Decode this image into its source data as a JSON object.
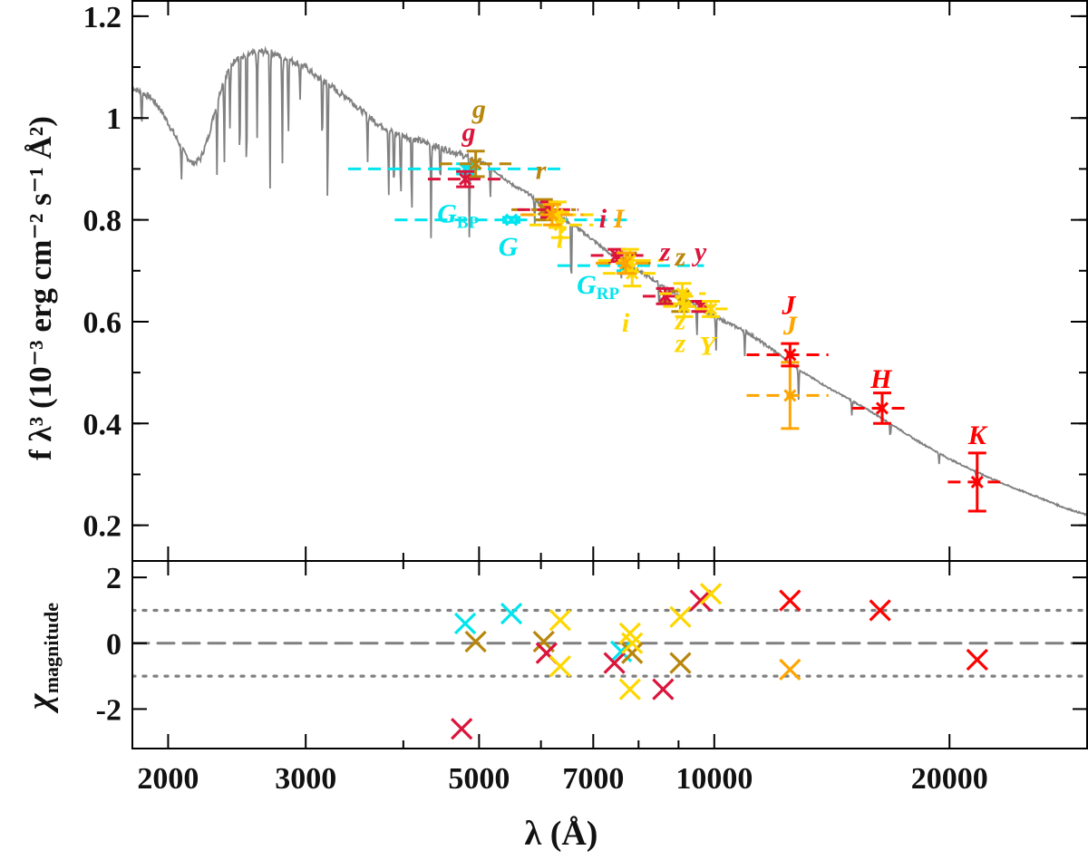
{
  "chart_data": [
    {
      "id": "sed",
      "type": "line+scatter",
      "title": "",
      "xlabel": "λ (Å)",
      "ylabel": "f λ³ (10⁻³ erg cm⁻² s⁻¹ Å²)",
      "xscale": "log",
      "xlim": [
        1800,
        30000
      ],
      "ylim": [
        0.13,
        1.23
      ],
      "xticks": [
        2000,
        3000,
        5000,
        7000,
        10000,
        20000
      ],
      "yticks": [
        0.2,
        0.4,
        0.6,
        0.8,
        1,
        1.2
      ],
      "yticklabels": [
        "0.2",
        "0.4",
        "0.6",
        "0.8",
        "1",
        "1.2"
      ],
      "model_spectrum": {
        "color": "#808080",
        "x": [
          1800,
          1850,
          1900,
          1950,
          2000,
          2050,
          2100,
          2150,
          2200,
          2250,
          2300,
          2350,
          2400,
          2450,
          2500,
          2600,
          2700,
          2800,
          2900,
          3000,
          3100,
          3200,
          3300,
          3400,
          3500,
          3700,
          3900,
          4100,
          4300,
          4500,
          4700,
          4900,
          5100,
          5300,
          5500,
          5800,
          6000,
          6300,
          6600,
          7000,
          7400,
          7800,
          8200,
          8600,
          9000,
          9500,
          10000,
          11000,
          12000,
          13000,
          14000,
          15000,
          16000,
          17000,
          18000,
          20000,
          22000,
          24000,
          26000,
          28000,
          30000
        ],
        "y": [
          1.06,
          1.05,
          1.04,
          1.02,
          0.99,
          0.96,
          0.93,
          0.91,
          0.92,
          0.96,
          1.02,
          1.07,
          1.1,
          1.12,
          1.12,
          1.13,
          1.13,
          1.12,
          1.11,
          1.1,
          1.08,
          1.07,
          1.05,
          1.04,
          1.02,
          0.99,
          0.97,
          0.96,
          0.95,
          0.94,
          0.93,
          0.92,
          0.91,
          0.89,
          0.87,
          0.85,
          0.83,
          0.81,
          0.79,
          0.76,
          0.73,
          0.71,
          0.69,
          0.67,
          0.65,
          0.63,
          0.61,
          0.58,
          0.54,
          0.5,
          0.47,
          0.445,
          0.42,
          0.395,
          0.37,
          0.33,
          0.3,
          0.275,
          0.255,
          0.235,
          0.22
        ]
      },
      "absorption_lines": [
        {
          "x": 1850,
          "depth": 0.07
        },
        {
          "x": 2080,
          "depth": 0.06
        },
        {
          "x": 2310,
          "depth": 0.14
        },
        {
          "x": 2360,
          "depth": 0.17
        },
        {
          "x": 2400,
          "depth": 0.13
        },
        {
          "x": 2470,
          "depth": 0.24
        },
        {
          "x": 2520,
          "depth": 0.27
        },
        {
          "x": 2600,
          "depth": 0.17
        },
        {
          "x": 2700,
          "depth": 0.29
        },
        {
          "x": 2800,
          "depth": 0.22
        },
        {
          "x": 2850,
          "depth": 0.16
        },
        {
          "x": 2950,
          "depth": 0.07
        },
        {
          "x": 3150,
          "depth": 0.14
        },
        {
          "x": 3200,
          "depth": 0.26
        },
        {
          "x": 3600,
          "depth": 0.09
        },
        {
          "x": 3830,
          "depth": 0.14
        },
        {
          "x": 3890,
          "depth": 0.13
        },
        {
          "x": 3970,
          "depth": 0.14
        },
        {
          "x": 4100,
          "depth": 0.16
        },
        {
          "x": 4340,
          "depth": 0.18
        },
        {
          "x": 4460,
          "depth": 0.08
        },
        {
          "x": 4860,
          "depth": 0.17
        },
        {
          "x": 5170,
          "depth": 0.06
        },
        {
          "x": 5890,
          "depth": 0.05
        },
        {
          "x": 6560,
          "depth": 0.14
        },
        {
          "x": 7600,
          "depth": 0.04
        },
        {
          "x": 8500,
          "depth": 0.05
        },
        {
          "x": 8660,
          "depth": 0.04
        },
        {
          "x": 9500,
          "depth": 0.06
        },
        {
          "x": 10050,
          "depth": 0.07
        },
        {
          "x": 10940,
          "depth": 0.05
        },
        {
          "x": 12820,
          "depth": 0.06
        },
        {
          "x": 15000,
          "depth": 0.03
        },
        {
          "x": 16800,
          "depth": 0.03
        },
        {
          "x": 19400,
          "depth": 0.02
        },
        {
          "x": 21660,
          "depth": 0.03
        }
      ],
      "photometry": [
        {
          "color": "#00e5ee",
          "x": 4800,
          "x_lo": 3400,
          "x_hi": 6400,
          "y": 0.9,
          "yerr": 0.01
        },
        {
          "color": "#00e5ee",
          "x": 5500,
          "x_lo": 3900,
          "x_hi": 7900,
          "y": 0.8,
          "yerr": 0.005
        },
        {
          "color": "#00e5ee",
          "x": 7700,
          "x_lo": 6300,
          "x_hi": 9700,
          "y": 0.71,
          "yerr": 0.01
        },
        {
          "color": "#b8860b",
          "x": 4950,
          "x_lo": 4450,
          "x_hi": 5500,
          "y": 0.91,
          "yerr": 0.025
        },
        {
          "color": "#b8860b",
          "x": 6050,
          "x_lo": 5500,
          "x_hi": 6650,
          "y": 0.82,
          "yerr": 0.02
        },
        {
          "color": "#b8860b",
          "x": 7750,
          "x_lo": 7100,
          "x_hi": 8400,
          "y": 0.715,
          "yerr": 0.02
        },
        {
          "color": "#b8860b",
          "x": 9050,
          "x_lo": 8500,
          "x_hi": 9600,
          "y": 0.64,
          "yerr": 0.02
        },
        {
          "color": "#dc143c",
          "x": 4800,
          "x_lo": 4300,
          "x_hi": 5400,
          "y": 0.88,
          "yerr": 0.015
        },
        {
          "color": "#dc143c",
          "x": 6150,
          "x_lo": 5600,
          "x_hi": 6700,
          "y": 0.82,
          "yerr": 0.015
        },
        {
          "color": "#dc143c",
          "x": 7500,
          "x_lo": 6950,
          "x_hi": 8200,
          "y": 0.73,
          "yerr": 0.012
        },
        {
          "color": "#dc143c",
          "x": 8650,
          "x_lo": 8100,
          "x_hi": 9200,
          "y": 0.65,
          "yerr": 0.015
        },
        {
          "color": "#dc143c",
          "x": 9600,
          "x_lo": 9100,
          "x_hi": 10000,
          "y": 0.63,
          "yerr": 0.01
        },
        {
          "color": "#ffd700",
          "x": 6300,
          "x_lo": 5700,
          "x_hi": 7000,
          "y": 0.81,
          "yerr": 0.025
        },
        {
          "color": "#ffd700",
          "x": 6350,
          "x_lo": 5800,
          "x_hi": 7000,
          "y": 0.79,
          "yerr": 0.025
        },
        {
          "color": "#ffd700",
          "x": 7800,
          "x_lo": 7100,
          "x_hi": 8600,
          "y": 0.72,
          "yerr": 0.022
        },
        {
          "color": "#ffd700",
          "x": 7850,
          "x_lo": 7200,
          "x_hi": 8550,
          "y": 0.695,
          "yerr": 0.025
        },
        {
          "color": "#ffd700",
          "x": 9100,
          "x_lo": 8500,
          "x_hi": 9750,
          "y": 0.655,
          "yerr": 0.02
        },
        {
          "color": "#ffd700",
          "x": 9150,
          "x_lo": 8600,
          "x_hi": 9700,
          "y": 0.63,
          "yerr": 0.02
        },
        {
          "color": "#ffd700",
          "x": 9900,
          "x_lo": 9450,
          "x_hi": 10400,
          "y": 0.625,
          "yerr": 0.015
        },
        {
          "color": "#ffa500",
          "x": 6200,
          "x_lo": 5650,
          "x_hi": 6800,
          "y": 0.81,
          "yerr": 0.02
        },
        {
          "color": "#ffa500",
          "x": 7700,
          "x_lo": 7050,
          "x_hi": 8400,
          "y": 0.715,
          "yerr": 0.02
        },
        {
          "color": "#ffa500",
          "x": 12500,
          "x_lo": 11000,
          "x_hi": 14000,
          "y": 0.455,
          "yerr": 0.065
        },
        {
          "color": "#ff0000",
          "x": 12500,
          "x_lo": 11000,
          "x_hi": 14000,
          "y": 0.535,
          "yerr": 0.022
        },
        {
          "color": "#ff0000",
          "x": 16400,
          "x_lo": 15000,
          "x_hi": 17800,
          "y": 0.43,
          "yerr": 0.03
        },
        {
          "color": "#ff0000",
          "x": 21700,
          "x_lo": 19900,
          "x_hi": 23400,
          "y": 0.285,
          "yerr": 0.057
        }
      ],
      "band_labels": [
        {
          "text": "g",
          "sub": "",
          "color": "#b8860b",
          "x": 5000,
          "y": 1.0
        },
        {
          "text": "g",
          "sub": "",
          "color": "#dc143c",
          "x": 4850,
          "y": 0.955
        },
        {
          "text": "r",
          "sub": "",
          "color": "#b8860b",
          "x": 6000,
          "y": 0.88
        },
        {
          "text": "G",
          "sub": "BP",
          "color": "#00e5ee",
          "x": 4700,
          "y": 0.795
        },
        {
          "text": "G",
          "sub": "",
          "color": "#00e5ee",
          "x": 5450,
          "y": 0.73
        },
        {
          "text": "i",
          "sub": "",
          "color": "#dc143c",
          "x": 7200,
          "y": 0.785
        },
        {
          "text": "I",
          "sub": "",
          "color": "#ffa500",
          "x": 7550,
          "y": 0.785
        },
        {
          "text": "i",
          "sub": "",
          "color": "#ffd700",
          "x": 6350,
          "y": 0.745
        },
        {
          "text": "z",
          "sub": "",
          "color": "#dc143c",
          "x": 8650,
          "y": 0.72
        },
        {
          "text": "z",
          "sub": "",
          "color": "#b8860b",
          "x": 9050,
          "y": 0.71
        },
        {
          "text": "y",
          "sub": "",
          "color": "#dc143c",
          "x": 9600,
          "y": 0.72
        },
        {
          "text": "G",
          "sub": "RP",
          "color": "#00e5ee",
          "x": 7100,
          "y": 0.655
        },
        {
          "text": "i",
          "sub": "",
          "color": "#ffd700",
          "x": 7700,
          "y": 0.58
        },
        {
          "text": "z",
          "sub": "",
          "color": "#ffd700",
          "x": 9050,
          "y": 0.585
        },
        {
          "text": "z",
          "sub": "",
          "color": "#ffd700",
          "x": 9050,
          "y": 0.54
        },
        {
          "text": "Y",
          "sub": "",
          "color": "#ffd700",
          "x": 9800,
          "y": 0.535
        },
        {
          "text": "J",
          "sub": "",
          "color": "#ff0000",
          "x": 12450,
          "y": 0.615
        },
        {
          "text": "J",
          "sub": "",
          "color": "#ffa500",
          "x": 12500,
          "y": 0.575
        },
        {
          "text": "H",
          "sub": "",
          "color": "#ff0000",
          "x": 16350,
          "y": 0.47
        },
        {
          "text": "K",
          "sub": "",
          "color": "#ff0000",
          "x": 21700,
          "y": 0.36
        }
      ]
    },
    {
      "id": "residuals",
      "type": "scatter",
      "xlabel": "λ (Å)",
      "ylabel": "χ",
      "ylabel_sub": "magnitude",
      "xscale": "log",
      "xlim": [
        1800,
        30000
      ],
      "ylim": [
        -3.2,
        2.5
      ],
      "xticks": [
        2000,
        3000,
        5000,
        7000,
        10000,
        20000
      ],
      "xticklabels": [
        "2000",
        "3000",
        "5000",
        "7000",
        "10000",
        "20000"
      ],
      "yticks": [
        -2,
        0,
        2
      ],
      "yticklabels": [
        "-2",
        "0",
        "2"
      ],
      "reference_lines": [
        {
          "y": 0,
          "style": "dashed",
          "color": "#808080"
        },
        {
          "y": 1,
          "style": "dotted",
          "color": "#808080"
        },
        {
          "y": -1,
          "style": "dotted",
          "color": "#808080"
        }
      ],
      "points": [
        {
          "x": 4800,
          "y": 0.6,
          "color": "#00e5ee"
        },
        {
          "x": 5500,
          "y": 0.9,
          "color": "#00e5ee"
        },
        {
          "x": 7600,
          "y": -0.25,
          "color": "#00e5ee"
        },
        {
          "x": 4950,
          "y": 0.05,
          "color": "#b8860b"
        },
        {
          "x": 6050,
          "y": 0.05,
          "color": "#b8860b"
        },
        {
          "x": 7850,
          "y": -0.3,
          "color": "#b8860b"
        },
        {
          "x": 9050,
          "y": -0.6,
          "color": "#b8860b"
        },
        {
          "x": 4750,
          "y": -2.6,
          "color": "#dc143c"
        },
        {
          "x": 6100,
          "y": -0.3,
          "color": "#dc143c"
        },
        {
          "x": 7450,
          "y": -0.6,
          "color": "#dc143c"
        },
        {
          "x": 8600,
          "y": -1.4,
          "color": "#dc143c"
        },
        {
          "x": 9600,
          "y": 1.3,
          "color": "#dc143c"
        },
        {
          "x": 6350,
          "y": 0.7,
          "color": "#ffd700"
        },
        {
          "x": 6350,
          "y": -0.7,
          "color": "#ffd700"
        },
        {
          "x": 7800,
          "y": 0.3,
          "color": "#ffd700"
        },
        {
          "x": 7850,
          "y": 0.0,
          "color": "#ffd700"
        },
        {
          "x": 7800,
          "y": -1.4,
          "color": "#ffd700"
        },
        {
          "x": 9050,
          "y": 0.8,
          "color": "#ffd700"
        },
        {
          "x": 9900,
          "y": 1.5,
          "color": "#ffd700"
        },
        {
          "x": 12500,
          "y": -0.8,
          "color": "#ffa500"
        },
        {
          "x": 12500,
          "y": 1.3,
          "color": "#ff0000"
        },
        {
          "x": 16300,
          "y": 1.0,
          "color": "#ff0000"
        },
        {
          "x": 21700,
          "y": -0.5,
          "color": "#ff0000"
        }
      ]
    }
  ]
}
